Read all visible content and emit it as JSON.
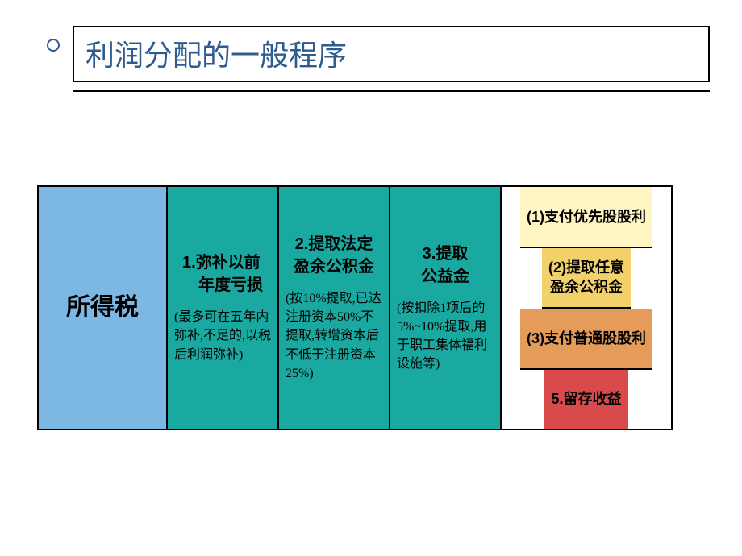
{
  "title": "利润分配的一般程序",
  "colors": {
    "title_text": "#2f5c8f",
    "border": "#000000",
    "col1_bg": "#7db7e4",
    "col2_bg": "#1aa9a0",
    "col3_bg": "#1aa9a0",
    "col4_bg": "#1aa9a0",
    "sub1_bg": "#fff6c4",
    "sub2_bg": "#f2d06a",
    "sub3_bg": "#e59b5a",
    "sub4_bg": "#d94b4b"
  },
  "columns": {
    "c1": {
      "label": "所得税"
    },
    "c2": {
      "label": "1.弥补以前\n　年度亏损",
      "detail": "(最多可在五年内弥补,不足的,以税后利润弥补)"
    },
    "c3": {
      "label": "2.提取法定\n盈余公积金",
      "detail": "(按10%提取,已达注册资本50%不提取,转增资本后不低于注册资本25%)"
    },
    "c4": {
      "label": "3.提取\n公益金",
      "detail": "(按扣除1项后的5%~10%提取,用于职工集体福利设施等)"
    },
    "c5": {
      "s1": "(1)支付优先股股利",
      "s2": "(2)提取任意\n盈余公积金",
      "s3": "(3)支付普通股股利",
      "s4": "5.留存收益"
    }
  }
}
